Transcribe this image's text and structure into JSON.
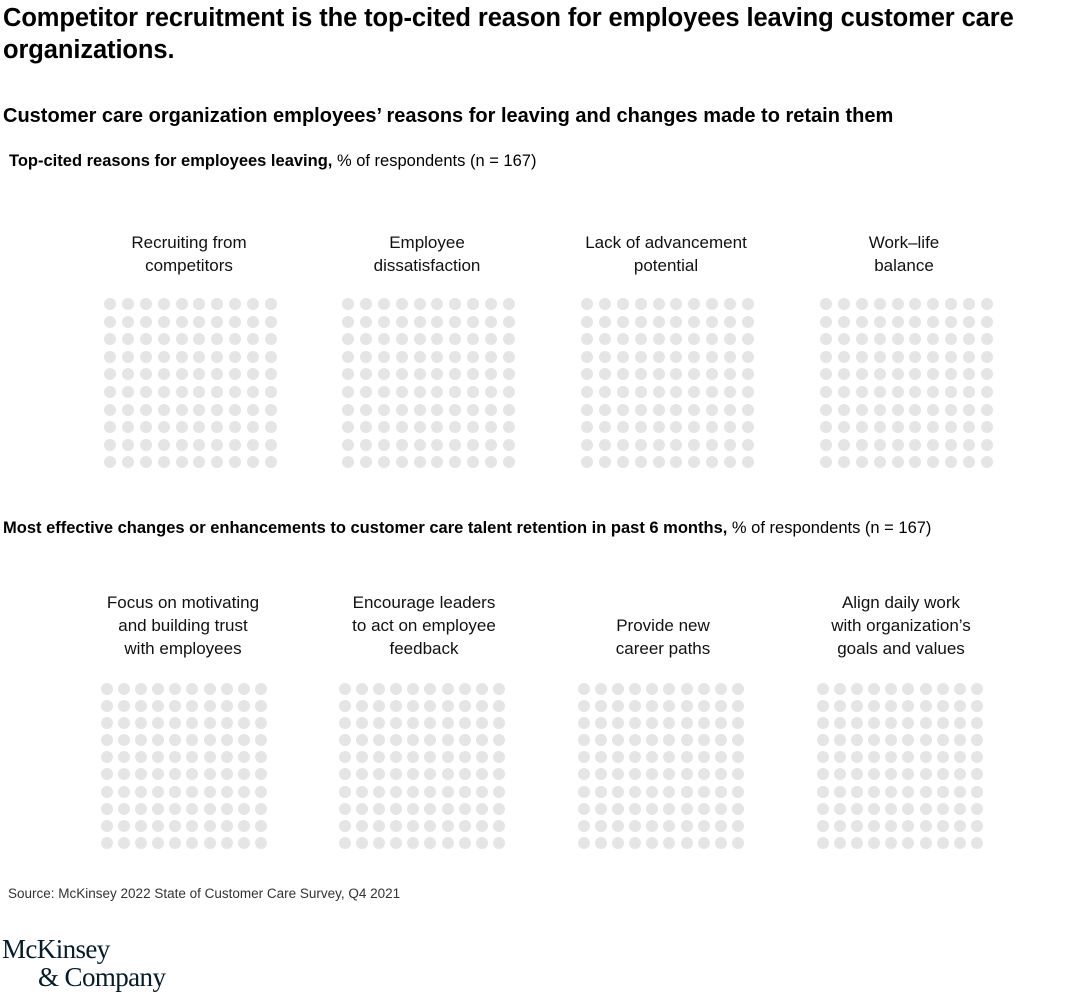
{
  "header": {
    "title": "Competitor recruitment is the top-cited reason for employees leaving customer care organizations.",
    "subtitle": "Customer care organization employees’ reasons for leaving and changes made to retain them"
  },
  "section1": {
    "label_bold": "Top-cited reasons for employees leaving,",
    "label_rest": " % of respondents (n = 167)",
    "categories": [
      {
        "line1": "Recruiting from",
        "line2": "competitors",
        "line3": ""
      },
      {
        "line1": "Employee",
        "line2": "dissatisfaction",
        "line3": ""
      },
      {
        "line1": "Lack of advancement",
        "line2": "potential",
        "line3": ""
      },
      {
        "line1": "Work–life",
        "line2": "balance",
        "line3": ""
      }
    ]
  },
  "section2": {
    "label_bold": "Most effective changes or enhancements to customer care talent retention in past 6 months,",
    "label_rest": " % of respondents (n = 167)",
    "categories": [
      {
        "line1": "Focus on motivating",
        "line2": "and building trust",
        "line3": "with employees"
      },
      {
        "line1": "Encourage leaders",
        "line2": "to act on employee",
        "line3": "feedback"
      },
      {
        "line1": "",
        "line2": "Provide new",
        "line3": "career paths"
      },
      {
        "line1": "Align daily work",
        "line2": "with organization’s",
        "line3": "goals and values"
      }
    ]
  },
  "footer": {
    "source": "Source: McKinsey 2022 State of Customer Care Survey, Q4 2021",
    "logo_line1": "McKinsey",
    "logo_line2": "& Company"
  },
  "colors": {
    "dot_empty": "#e5e5e5",
    "dot_filled": "#051c2c",
    "text": "#000000",
    "logo": "#051c2c"
  },
  "chart_data": [
    {
      "type": "waffle",
      "title": "Top-cited reasons for employees leaving",
      "ylabel": "% of respondents (n = 167)",
      "categories": [
        "Recruiting from competitors",
        "Employee dissatisfaction",
        "Lack of advancement potential",
        "Work–life balance"
      ],
      "grid": [
        10,
        10
      ],
      "values": [
        0,
        0,
        0,
        0
      ],
      "note": "Grids show 100 unfilled dots each; no percentages visible in this frame"
    },
    {
      "type": "waffle",
      "title": "Most effective changes or enhancements to customer care talent retention in past 6 months",
      "ylabel": "% of respondents (n = 167)",
      "categories": [
        "Focus on motivating and building trust with employees",
        "Encourage leaders to act on employee feedback",
        "Provide new career paths",
        "Align daily work with organization’s goals and values"
      ],
      "grid": [
        10,
        10
      ],
      "values": [
        0,
        0,
        0,
        0
      ],
      "note": "Grids show 100 unfilled dots each; no percentages visible in this frame"
    }
  ]
}
